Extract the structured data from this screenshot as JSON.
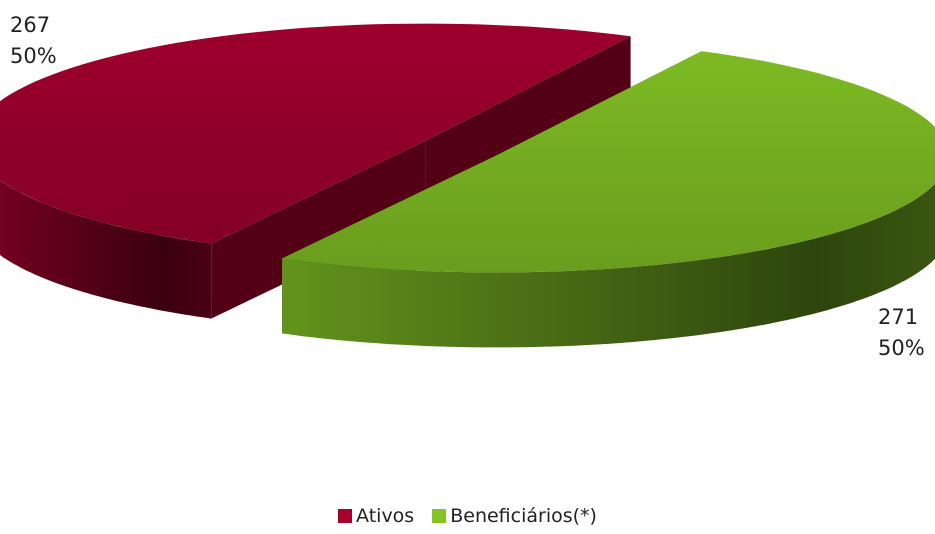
{
  "chart_data": {
    "type": "pie3d",
    "categories": [
      "Ativos",
      "Beneficiários(*)"
    ],
    "values": [
      267,
      271
    ],
    "percent_labels": [
      "50%",
      "50%"
    ],
    "colors": [
      "#a5002e",
      "#84c425"
    ],
    "legend": "bottom"
  }
}
